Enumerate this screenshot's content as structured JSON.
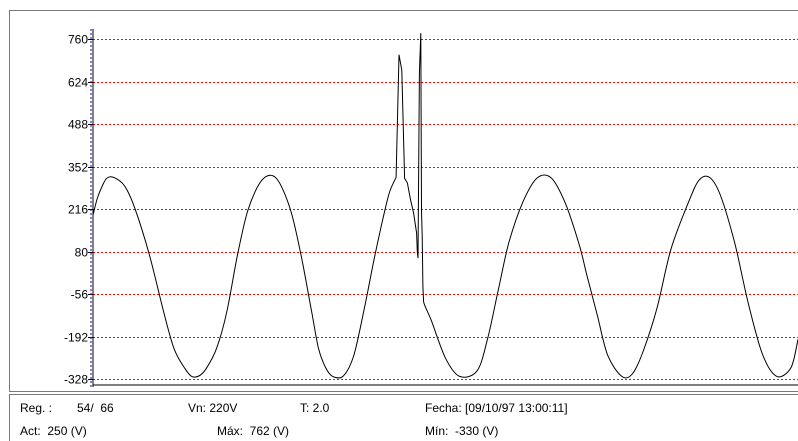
{
  "chart_data": {
    "type": "line",
    "ylim": [
      -352,
      792
    ],
    "xlim": [
      0,
      1
    ],
    "y_ticks": [
      "760",
      "624",
      "488",
      "352",
      "216",
      "80",
      "-56",
      "-192",
      "-328"
    ],
    "y_tick_values": [
      760,
      624,
      488,
      352,
      216,
      80,
      -56,
      -192,
      -328
    ],
    "grid": "horizontal dashed red",
    "series": [
      {
        "color": "#000000",
        "x": [
          0.0,
          0.006,
          0.013,
          0.02,
          0.03,
          0.045,
          0.06,
          0.08,
          0.1,
          0.115,
          0.13,
          0.14,
          0.15,
          0.16,
          0.175,
          0.19,
          0.205,
          0.22,
          0.24,
          0.26,
          0.28,
          0.295,
          0.31,
          0.32,
          0.33,
          0.34,
          0.355,
          0.37,
          0.385,
          0.4,
          0.418,
          0.426,
          0.43,
          0.434,
          0.438,
          0.442,
          0.446,
          0.45,
          0.455,
          0.459,
          0.46,
          0.461,
          0.463,
          0.465,
          0.466,
          0.467,
          0.468,
          0.469,
          0.48,
          0.5,
          0.52,
          0.545,
          0.56,
          0.575,
          0.59,
          0.61,
          0.63,
          0.65,
          0.67,
          0.69,
          0.7,
          0.715,
          0.73,
          0.75,
          0.765,
          0.78,
          0.8,
          0.82,
          0.845,
          0.86,
          0.875,
          0.89,
          0.91,
          0.93,
          0.95,
          0.97,
          0.99,
          1.0
        ],
        "y": [
          198,
          250,
          290,
          316,
          317,
          290,
          215,
          70,
          -110,
          -230,
          -292,
          -318,
          -317,
          -295,
          -230,
          -110,
          70,
          215,
          310,
          315,
          215,
          70,
          -110,
          -230,
          -290,
          -318,
          -317,
          -250,
          -100,
          70,
          250,
          300,
          318,
          710,
          660,
          315,
          300,
          250,
          200,
          140,
          80,
          60,
          650,
          779,
          210,
          130,
          -30,
          -80,
          -140,
          -260,
          -318,
          -300,
          -195,
          -40,
          110,
          240,
          316,
          316,
          235,
          100,
          10,
          -120,
          -250,
          -318,
          -310,
          -240,
          -100,
          90,
          240,
          310,
          317,
          260,
          110,
          -90,
          -250,
          -318,
          -290,
          -200
        ]
      }
    ]
  },
  "status": {
    "reg_label": "Reg. :",
    "reg_value": "54/  66",
    "vn": "Vn: 220V",
    "t": "T: 2.0",
    "fecha": "Fecha: [09/10/97 13:00:11]",
    "act": "Act:  250 (V)",
    "max": "Máx:  762 (V)",
    "min": "Mín:  -330 (V)"
  },
  "colors": {
    "grid": "#ff0000",
    "cursor": "#0000cc",
    "trace": "#000000",
    "frame": "#7a7a7a"
  }
}
